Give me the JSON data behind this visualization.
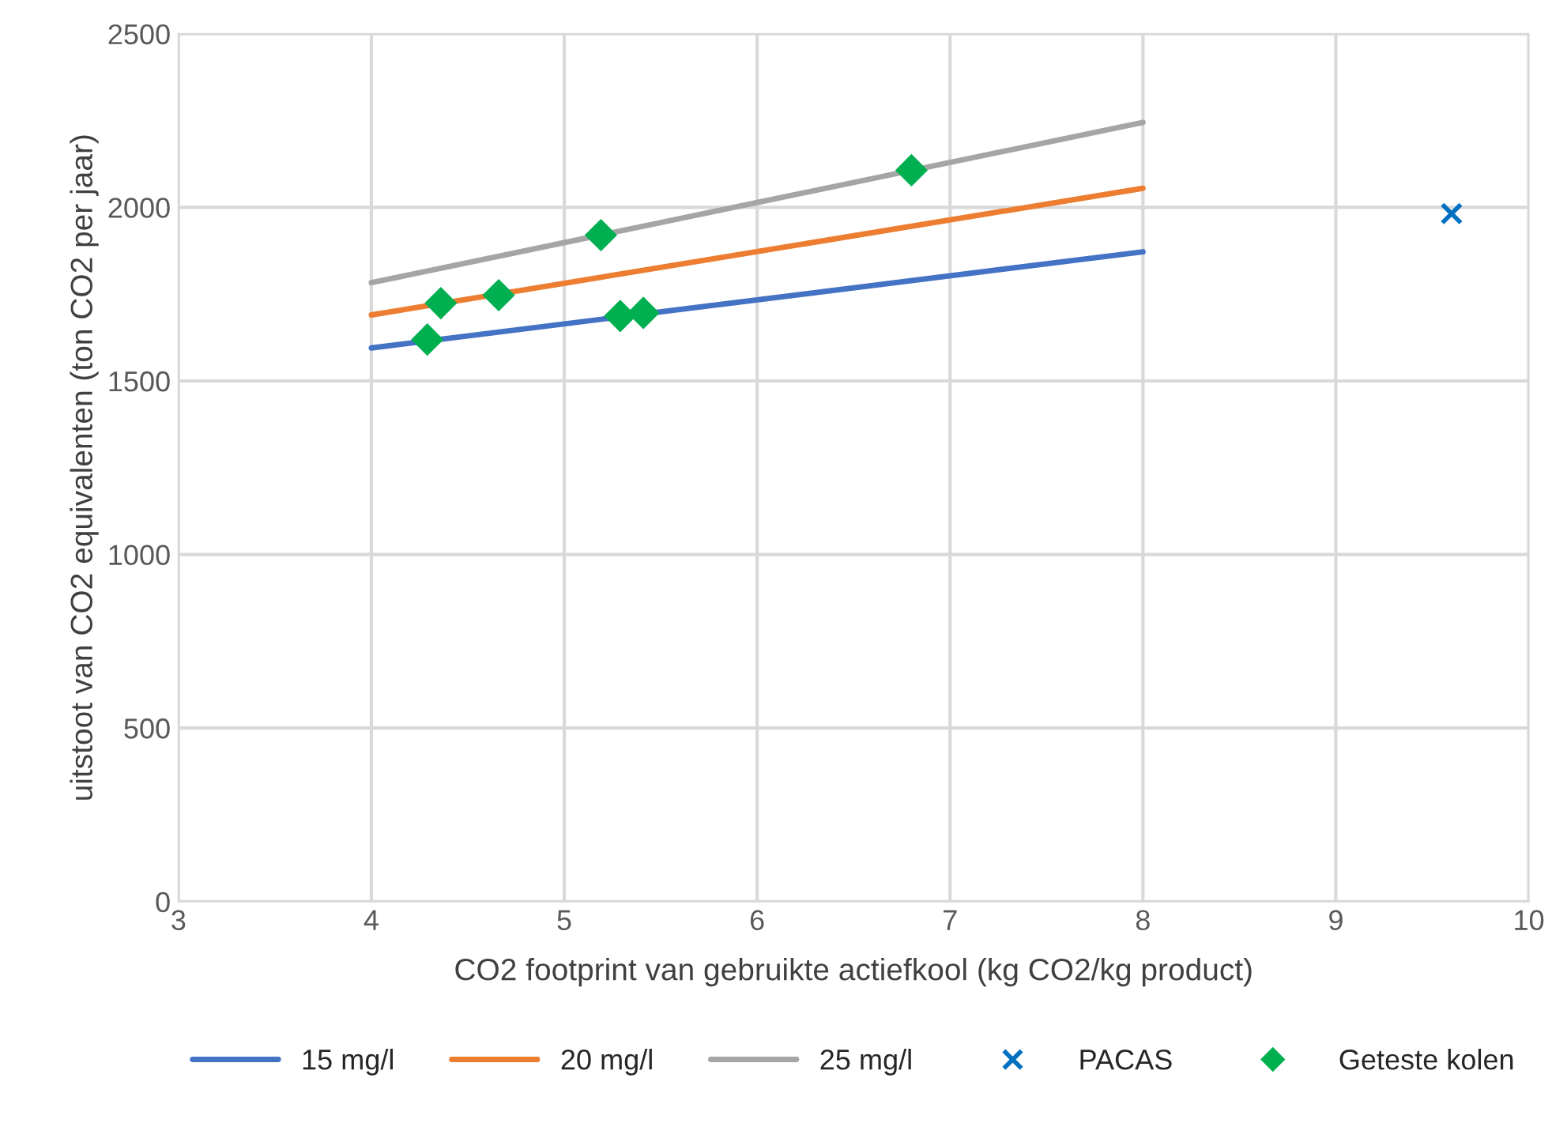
{
  "chart_data": {
    "type": "line",
    "xlabel": "CO2 footprint van gebruikte actiefkool (kg CO2/kg product)",
    "ylabel": "uitstoot van CO2 equivalenten (ton CO2 per jaar)",
    "xlim": [
      3,
      10
    ],
    "xticks": [
      3,
      4,
      5,
      6,
      7,
      8,
      9,
      10
    ],
    "ylim": [
      0,
      2500
    ],
    "yticks": [
      0,
      500,
      1000,
      1500,
      2000,
      2500
    ],
    "grid": true,
    "legend": "bottom",
    "series": [
      {
        "name": "15 mg/l",
        "color": "#4472c4",
        "x": [
          4,
          8
        ],
        "values": [
          1595,
          1872
        ],
        "marker": "none"
      },
      {
        "name": "20 mg/l",
        "color": "#ed7d31",
        "x": [
          4,
          8
        ],
        "values": [
          1690,
          2055
        ],
        "marker": "none"
      },
      {
        "name": "25 mg/l",
        "color": "#a5a5a5",
        "x": [
          4,
          8
        ],
        "values": [
          1783,
          2245
        ],
        "marker": "none"
      },
      {
        "name": "PACAS",
        "type": "scatter",
        "color": "#0070c0",
        "x": [
          9.6
        ],
        "values": [
          1982
        ],
        "marker": "cross"
      },
      {
        "name": "Geteste kolen",
        "type": "scatter",
        "color": "#00b050",
        "x": [
          4.29,
          4.36,
          4.66,
          5.19,
          5.29,
          5.41,
          6.8
        ],
        "values": [
          1619,
          1724,
          1747,
          1920,
          1687,
          1696,
          2107
        ],
        "marker": "diamond"
      }
    ]
  }
}
